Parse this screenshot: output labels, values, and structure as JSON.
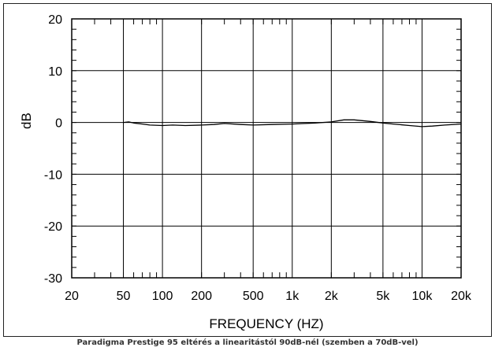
{
  "caption": "Paradigma Prestige 95 eltérés a linearitástól 90dB-nél (szemben a 70dB-vel)",
  "chart_data": {
    "type": "line",
    "title": "",
    "xlabel": "FREQUENCY  (HZ)",
    "ylabel": "dB",
    "xscale": "log",
    "xlim": [
      20,
      20000
    ],
    "ylim": [
      -30,
      20
    ],
    "grid": true,
    "x_tick_labels": [
      {
        "value": 20,
        "label": "20"
      },
      {
        "value": 50,
        "label": "50"
      },
      {
        "value": 100,
        "label": "100"
      },
      {
        "value": 200,
        "label": "200"
      },
      {
        "value": 500,
        "label": "500"
      },
      {
        "value": 1000,
        "label": "1k"
      },
      {
        "value": 2000,
        "label": "2k"
      },
      {
        "value": 5000,
        "label": "5k"
      },
      {
        "value": 10000,
        "label": "10k"
      },
      {
        "value": 20000,
        "label": "20k"
      }
    ],
    "y_ticks": [
      20,
      10,
      0,
      -10,
      -20,
      -30
    ],
    "series": [
      {
        "values": [
          {
            "x": 50,
            "y": 0.0
          },
          {
            "x": 55,
            "y": 0.1
          },
          {
            "x": 60,
            "y": -0.1
          },
          {
            "x": 70,
            "y": -0.3
          },
          {
            "x": 80,
            "y": -0.5
          },
          {
            "x": 100,
            "y": -0.6
          },
          {
            "x": 120,
            "y": -0.5
          },
          {
            "x": 150,
            "y": -0.6
          },
          {
            "x": 200,
            "y": -0.5
          },
          {
            "x": 250,
            "y": -0.4
          },
          {
            "x": 300,
            "y": -0.2
          },
          {
            "x": 400,
            "y": -0.4
          },
          {
            "x": 500,
            "y": -0.5
          },
          {
            "x": 700,
            "y": -0.4
          },
          {
            "x": 1000,
            "y": -0.3
          },
          {
            "x": 1500,
            "y": -0.1
          },
          {
            "x": 2000,
            "y": 0.1
          },
          {
            "x": 2500,
            "y": 0.5
          },
          {
            "x": 3000,
            "y": 0.5
          },
          {
            "x": 4000,
            "y": 0.2
          },
          {
            "x": 5000,
            "y": -0.1
          },
          {
            "x": 6000,
            "y": -0.3
          },
          {
            "x": 8000,
            "y": -0.6
          },
          {
            "x": 10000,
            "y": -0.8
          },
          {
            "x": 12000,
            "y": -0.7
          },
          {
            "x": 15000,
            "y": -0.5
          },
          {
            "x": 20000,
            "y": -0.3
          }
        ]
      }
    ]
  }
}
